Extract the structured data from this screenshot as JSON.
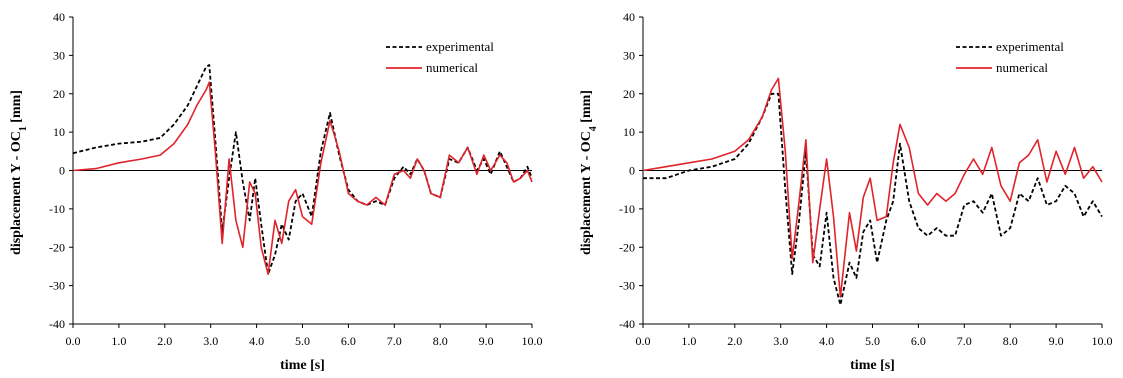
{
  "chart_data": [
    {
      "type": "line",
      "title": "",
      "xlabel": "time [s]",
      "ylabel_main": "displacement Y - OC",
      "ylabel_sub": "1",
      "ylabel_end": " [mm]",
      "xlim": [
        0.0,
        10.0
      ],
      "ylim": [
        -40,
        40
      ],
      "xticks": [
        "0.0",
        "1.0",
        "2.0",
        "3.0",
        "4.0",
        "5.0",
        "6.0",
        "7.0",
        "8.0",
        "9.0",
        "10.0"
      ],
      "yticks": [
        "40",
        "30",
        "20",
        "10",
        "0",
        "-10",
        "-20",
        "-30",
        "-40"
      ],
      "grid": false,
      "legend_position": "top-right",
      "series": [
        {
          "name": "experimental",
          "style": "dashed",
          "color": "#000000",
          "x": [
            0.0,
            0.5,
            1.0,
            1.5,
            1.9,
            2.2,
            2.5,
            2.7,
            2.9,
            2.97,
            3.1,
            3.25,
            3.4,
            3.55,
            3.7,
            3.85,
            3.97,
            4.1,
            4.25,
            4.4,
            4.55,
            4.7,
            4.85,
            5.0,
            5.2,
            5.4,
            5.6,
            5.8,
            6.0,
            6.2,
            6.4,
            6.6,
            6.8,
            7.0,
            7.2,
            7.35,
            7.5,
            7.65,
            7.8,
            8.0,
            8.2,
            8.4,
            8.6,
            8.8,
            8.95,
            9.1,
            9.3,
            9.45,
            9.6,
            9.75,
            9.9,
            10.0
          ],
          "y": [
            4.5,
            6,
            7,
            7.5,
            8.5,
            12,
            17,
            22,
            27,
            27.5,
            8,
            -16,
            -2,
            10,
            -3,
            -13,
            -2,
            -14,
            -27,
            -22,
            -14,
            -18,
            -8,
            -6,
            -12,
            5,
            15,
            4,
            -5,
            -8,
            -9,
            -8,
            -9,
            -2,
            1,
            -1,
            3,
            0,
            -6,
            -7,
            3,
            2,
            6,
            0,
            3,
            -1,
            5,
            1,
            -3,
            -2,
            1,
            -2
          ]
        },
        {
          "name": "numerical",
          "style": "solid",
          "color": "#e0242b",
          "x": [
            0.0,
            0.5,
            1.0,
            1.5,
            1.9,
            2.2,
            2.5,
            2.7,
            2.9,
            2.97,
            3.1,
            3.25,
            3.4,
            3.55,
            3.7,
            3.85,
            3.97,
            4.1,
            4.25,
            4.4,
            4.55,
            4.7,
            4.85,
            5.0,
            5.2,
            5.4,
            5.6,
            5.8,
            6.0,
            6.2,
            6.4,
            6.6,
            6.8,
            7.0,
            7.2,
            7.35,
            7.5,
            7.65,
            7.8,
            8.0,
            8.2,
            8.4,
            8.6,
            8.8,
            8.95,
            9.1,
            9.3,
            9.45,
            9.6,
            9.75,
            9.9,
            10.0
          ],
          "y": [
            0,
            0.5,
            2,
            3,
            4,
            7,
            12,
            17,
            21,
            23,
            5,
            -19,
            3,
            -13,
            -20,
            -3,
            -6,
            -20,
            -27,
            -13,
            -19,
            -8,
            -5,
            -12,
            -14,
            2,
            13,
            5,
            -6,
            -8,
            -9,
            -7,
            -9,
            -1,
            0,
            -2,
            3,
            0,
            -6,
            -7,
            4,
            2,
            6,
            -1,
            4,
            0,
            4,
            2,
            -3,
            -2,
            0,
            -3
          ]
        }
      ]
    },
    {
      "type": "line",
      "title": "",
      "xlabel": "time [s]",
      "ylabel_main": "displacement Y - OC",
      "ylabel_sub": "4",
      "ylabel_end": " [mm]",
      "xlim": [
        0.0,
        10.0
      ],
      "ylim": [
        -40,
        40
      ],
      "xticks": [
        "0.0",
        "1.0",
        "2.0",
        "3.0",
        "4.0",
        "5.0",
        "6.0",
        "7.0",
        "8.0",
        "9.0",
        "10.0"
      ],
      "yticks": [
        "40",
        "30",
        "20",
        "10",
        "0",
        "-10",
        "-20",
        "-30",
        "-40"
      ],
      "grid": false,
      "legend_position": "top-right",
      "series": [
        {
          "name": "experimental",
          "style": "dashed",
          "color": "#000000",
          "x": [
            0.0,
            0.5,
            1.0,
            1.5,
            2.0,
            2.3,
            2.6,
            2.8,
            2.95,
            3.1,
            3.25,
            3.4,
            3.55,
            3.7,
            3.85,
            4.0,
            4.15,
            4.3,
            4.5,
            4.65,
            4.8,
            4.95,
            5.1,
            5.3,
            5.45,
            5.6,
            5.8,
            6.0,
            6.2,
            6.4,
            6.6,
            6.8,
            7.0,
            7.2,
            7.4,
            7.6,
            7.8,
            8.0,
            8.2,
            8.4,
            8.6,
            8.8,
            9.0,
            9.2,
            9.4,
            9.6,
            9.8,
            10.0
          ],
          "y": [
            -2,
            -2,
            0,
            1,
            3,
            7,
            14,
            20,
            20,
            -5,
            -27,
            -13,
            5,
            -22,
            -25,
            -11,
            -28,
            -35,
            -24,
            -28,
            -16,
            -13,
            -24,
            -13,
            -8,
            7,
            -8,
            -15,
            -17,
            -15,
            -17,
            -17,
            -9,
            -8,
            -11,
            -6,
            -17,
            -15,
            -6,
            -8,
            -2,
            -9,
            -8,
            -4,
            -6,
            -12,
            -8,
            -12
          ]
        },
        {
          "name": "numerical",
          "style": "solid",
          "color": "#e0242b",
          "x": [
            0.0,
            0.5,
            1.0,
            1.5,
            2.0,
            2.3,
            2.6,
            2.8,
            2.95,
            3.1,
            3.25,
            3.4,
            3.55,
            3.7,
            3.85,
            4.0,
            4.15,
            4.3,
            4.5,
            4.65,
            4.8,
            4.95,
            5.1,
            5.3,
            5.45,
            5.6,
            5.8,
            6.0,
            6.2,
            6.4,
            6.6,
            6.8,
            7.0,
            7.2,
            7.4,
            7.6,
            7.8,
            8.0,
            8.2,
            8.4,
            8.6,
            8.8,
            9.0,
            9.2,
            9.4,
            9.6,
            9.8,
            10.0
          ],
          "y": [
            0,
            1,
            2,
            3,
            5,
            8,
            14,
            21,
            24,
            5,
            -23,
            -8,
            8,
            -24,
            -10,
            3,
            -12,
            -33,
            -11,
            -21,
            -7,
            -2,
            -13,
            -12,
            2,
            12,
            6,
            -6,
            -9,
            -6,
            -8,
            -6,
            -1,
            3,
            -1,
            6,
            -4,
            -8,
            2,
            4,
            8,
            -3,
            5,
            -1,
            6,
            -2,
            1,
            -3
          ]
        }
      ]
    }
  ]
}
